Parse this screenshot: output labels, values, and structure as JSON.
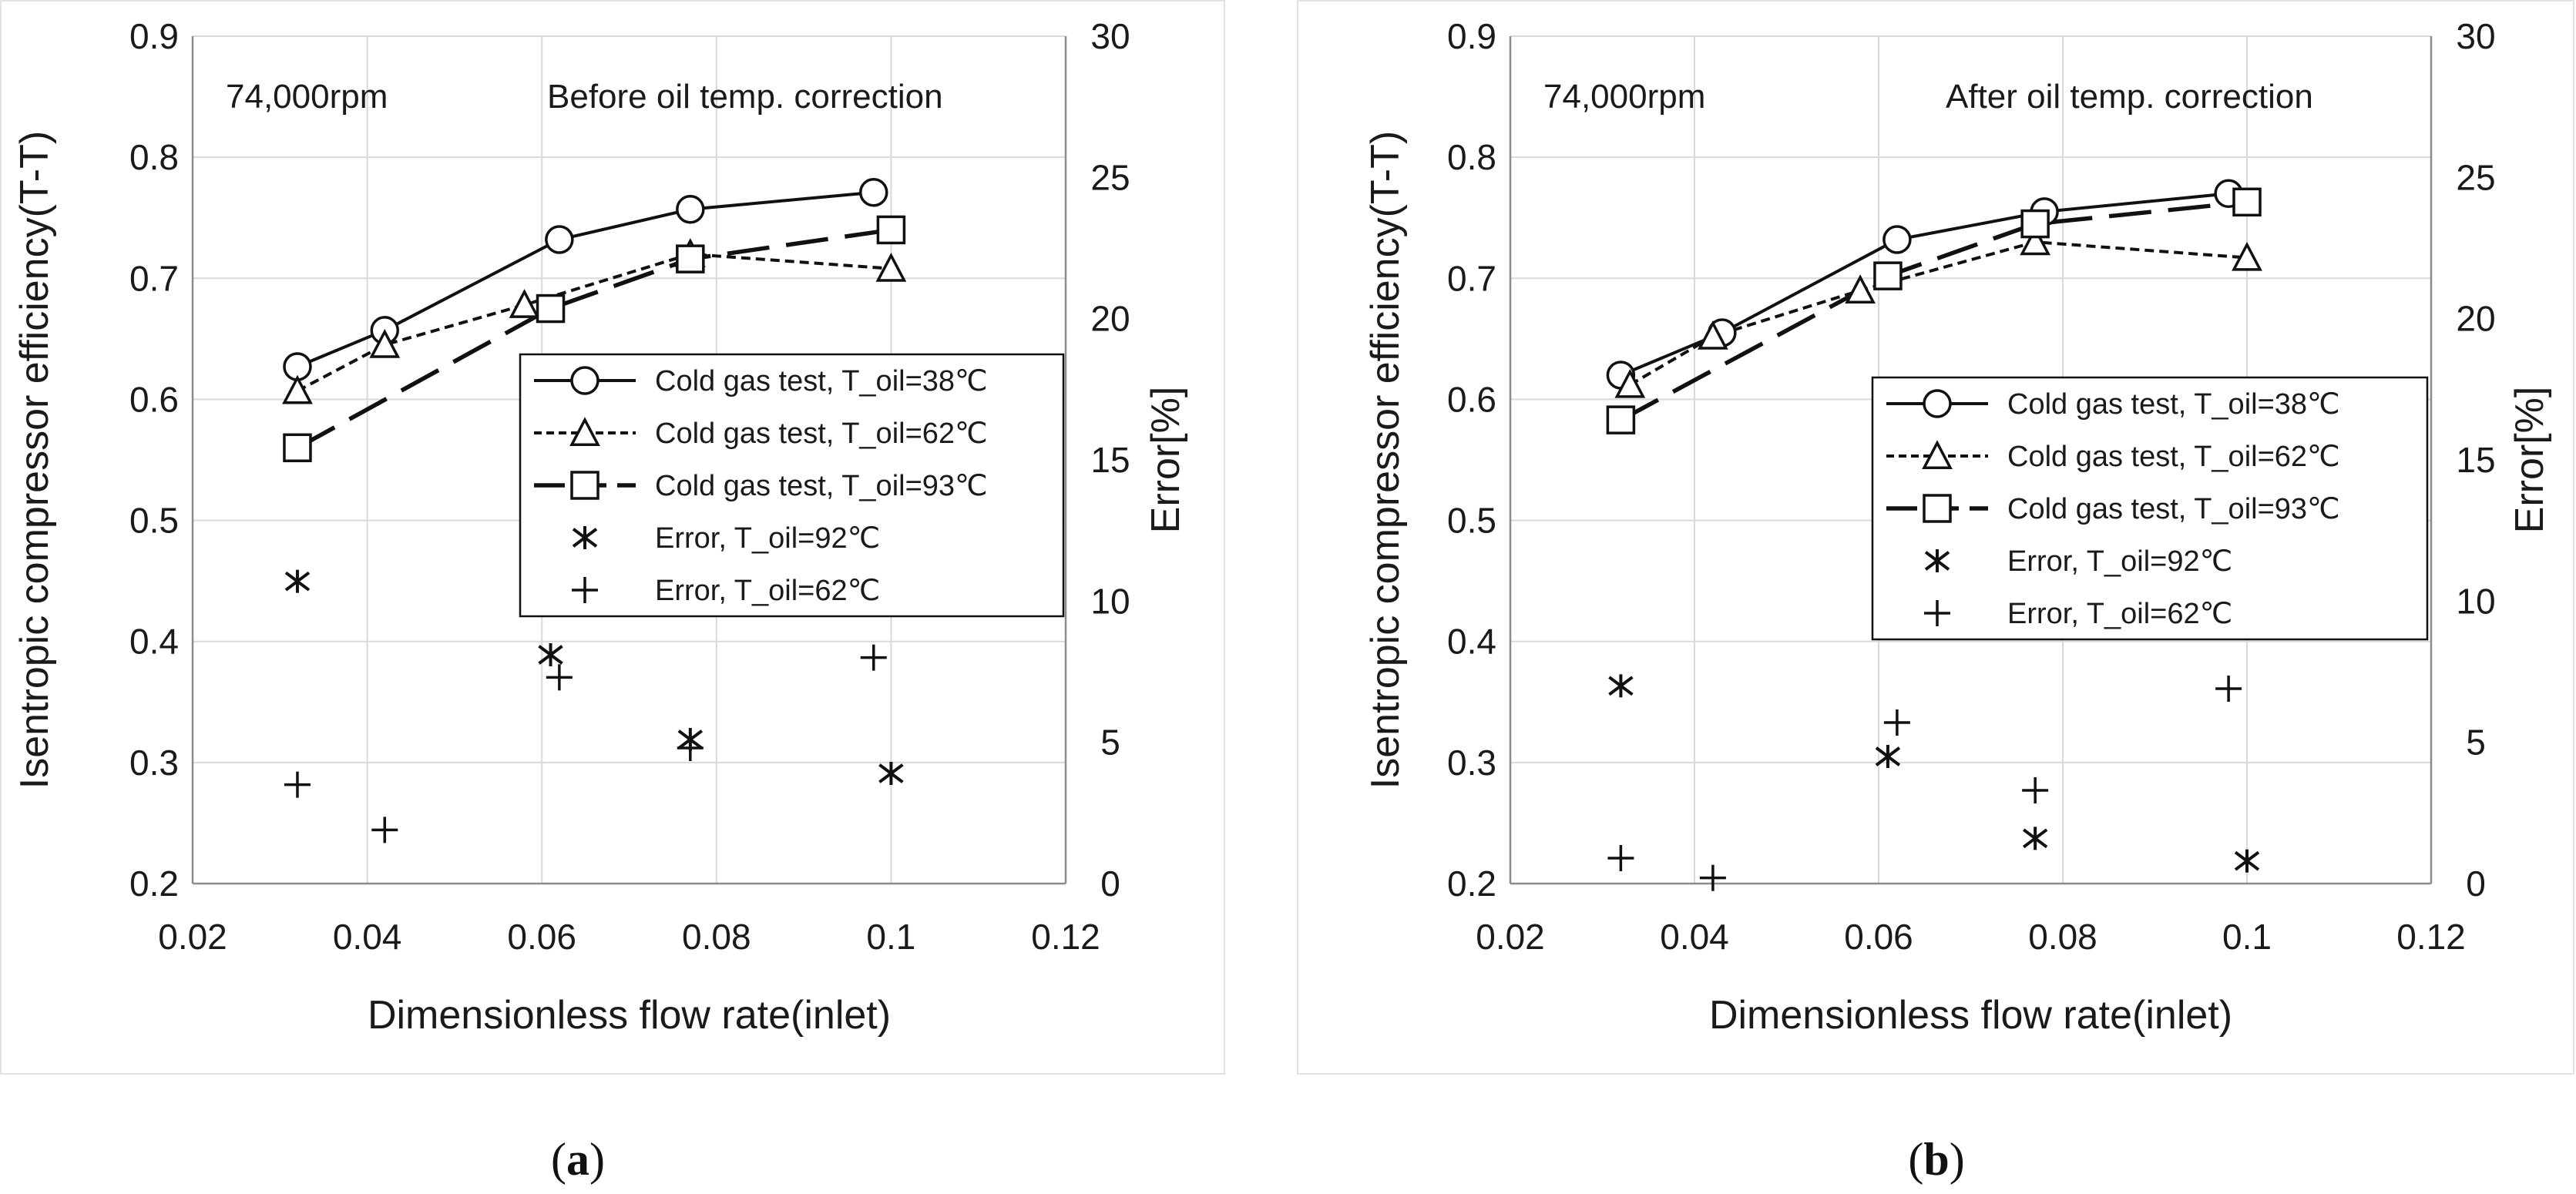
{
  "chart_data": [
    {
      "panel": "(a)",
      "type": "line",
      "xlabel": "Dimensionless flow rate(inlet)",
      "ylabel": "Isentropic compressor efficiency(T-T)",
      "y2label": "Error[%]",
      "xlim": [
        0.02,
        0.12
      ],
      "ylim": [
        0.2,
        0.9
      ],
      "y2lim": [
        0,
        30
      ],
      "xticks": [
        "0.02",
        "0.04",
        "0.06",
        "0.08",
        "0.1",
        "0.12"
      ],
      "yticks": [
        "0.2",
        "0.3",
        "0.4",
        "0.5",
        "0.6",
        "0.7",
        "0.8",
        "0.9"
      ],
      "y2ticks": [
        "0",
        "5",
        "10",
        "15",
        "20",
        "25",
        "30"
      ],
      "annotations": [
        "74,000rpm",
        "Before oil temp. correction"
      ],
      "grid": true,
      "legend_position": "right-middle",
      "series": [
        {
          "name": "Cold gas test, T_oil=38℃",
          "axis": "left",
          "style": "solid",
          "marker": "circle",
          "x": [
            0.032,
            0.042,
            0.062,
            0.077,
            0.098
          ],
          "y": [
            0.627,
            0.657,
            0.732,
            0.757,
            0.771
          ]
        },
        {
          "name": "Cold gas test, T_oil=62℃",
          "axis": "left",
          "style": "dotted",
          "marker": "triangle",
          "x": [
            0.032,
            0.042,
            0.058,
            0.077,
            0.1
          ],
          "y": [
            0.607,
            0.645,
            0.678,
            0.72,
            0.708
          ]
        },
        {
          "name": "Cold gas test, T_oil=93℃",
          "axis": "left",
          "style": "dashed",
          "marker": "square",
          "x": [
            0.032,
            0.061,
            0.077,
            0.1
          ],
          "y": [
            0.56,
            0.675,
            0.716,
            0.74
          ]
        },
        {
          "name": "Error, T_oil=92℃",
          "axis": "right",
          "style": "none",
          "marker": "asterisk",
          "x": [
            0.032,
            0.061,
            0.077,
            0.1
          ],
          "y": [
            10.7,
            8.1,
            5.1,
            3.9
          ]
        },
        {
          "name": "Error, T_oil=62℃",
          "axis": "right",
          "style": "none",
          "marker": "plus",
          "x": [
            0.032,
            0.042,
            0.062,
            0.077,
            0.098
          ],
          "y": [
            3.5,
            1.9,
            7.3,
            4.8,
            8.0
          ]
        }
      ],
      "caption": "a"
    },
    {
      "panel": "(b)",
      "type": "line",
      "xlabel": "Dimensionless flow rate(inlet)",
      "ylabel": "Isentropic compressor efficiency(T-T)",
      "y2label": "Error[%]",
      "xlim": [
        0.02,
        0.12
      ],
      "ylim": [
        0.2,
        0.9
      ],
      "y2lim": [
        0,
        30
      ],
      "xticks": [
        "0.02",
        "0.04",
        "0.06",
        "0.08",
        "0.1",
        "0.12"
      ],
      "yticks": [
        "0.2",
        "0.3",
        "0.4",
        "0.5",
        "0.6",
        "0.7",
        "0.8",
        "0.9"
      ],
      "y2ticks": [
        "0",
        "5",
        "10",
        "15",
        "20",
        "25",
        "30"
      ],
      "annotations": [
        "74,000rpm",
        "After oil temp. correction"
      ],
      "grid": true,
      "legend_position": "right-middle",
      "series": [
        {
          "name": "Cold gas test, T_oil=38℃",
          "axis": "left",
          "style": "solid",
          "marker": "circle",
          "x": [
            0.032,
            0.043,
            0.062,
            0.078,
            0.098
          ],
          "y": [
            0.62,
            0.655,
            0.732,
            0.755,
            0.77
          ]
        },
        {
          "name": "Cold gas test, T_oil=62℃",
          "axis": "left",
          "style": "dotted",
          "marker": "triangle",
          "x": [
            0.033,
            0.042,
            0.058,
            0.077,
            0.1
          ],
          "y": [
            0.612,
            0.652,
            0.69,
            0.73,
            0.717
          ]
        },
        {
          "name": "Cold gas test, T_oil=93℃",
          "axis": "left",
          "style": "dashed",
          "marker": "square",
          "x": [
            0.032,
            0.061,
            0.077,
            0.1
          ],
          "y": [
            0.583,
            0.702,
            0.745,
            0.763
          ]
        },
        {
          "name": "Error, T_oil=92℃",
          "axis": "right",
          "style": "none",
          "marker": "asterisk",
          "x": [
            0.032,
            0.061,
            0.077,
            0.1
          ],
          "y": [
            7.0,
            4.5,
            1.6,
            0.8
          ]
        },
        {
          "name": "Error, T_oil=62℃",
          "axis": "right",
          "style": "none",
          "marker": "plus",
          "x": [
            0.032,
            0.042,
            0.062,
            0.077,
            0.098
          ],
          "y": [
            0.9,
            0.2,
            5.7,
            3.3,
            6.9
          ]
        }
      ],
      "caption": "b"
    }
  ]
}
